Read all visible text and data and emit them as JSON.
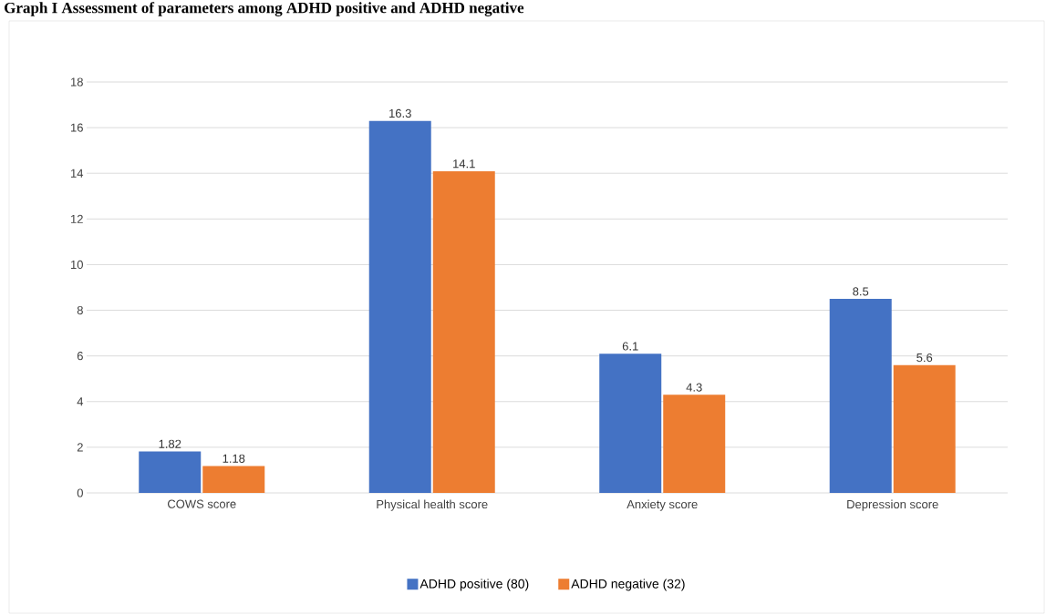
{
  "chart_data": {
    "type": "bar",
    "title": "Graph I Assessment of parameters among ADHD positive and ADHD negative",
    "categories": [
      "COWS score",
      "Physical health score",
      "Anxiety score",
      "Depression score"
    ],
    "series": [
      {
        "name": "ADHD positive (80)",
        "color": "#4472c4",
        "values": [
          1.82,
          16.3,
          6.1,
          8.5
        ]
      },
      {
        "name": "ADHD negative (32)",
        "color": "#ed7d31",
        "values": [
          1.18,
          14.1,
          4.3,
          5.6
        ]
      }
    ],
    "ylim": [
      0,
      18
    ],
    "yticks": [
      0,
      2,
      4,
      6,
      8,
      10,
      12,
      14,
      16,
      18
    ],
    "grid": "y",
    "legend": "bottom",
    "data_labels": true
  }
}
